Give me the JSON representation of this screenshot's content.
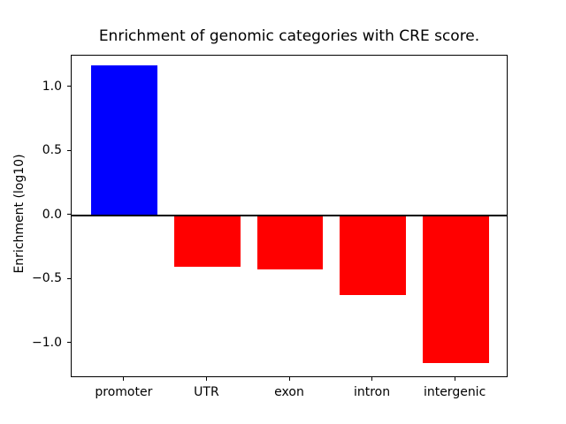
{
  "chart_data": {
    "type": "bar",
    "title": "Enrichment of genomic categories with CRE score.",
    "xlabel": "",
    "ylabel": "Enrichment (log10)",
    "categories": [
      "promoter",
      "UTR",
      "exon",
      "intron",
      "intergenic"
    ],
    "values": [
      1.17,
      -0.4,
      -0.42,
      -0.62,
      -1.15
    ],
    "series": [
      {
        "name": "enrichment",
        "values": [
          1.17,
          -0.4,
          -0.42,
          -0.62,
          -1.15
        ]
      }
    ],
    "bar_colors": [
      "#0000ff",
      "#ff0000",
      "#ff0000",
      "#ff0000",
      "#ff0000"
    ],
    "positive_color": "#0000ff",
    "negative_color": "#ff0000",
    "yticks": [
      1.0,
      0.5,
      0.0,
      -0.5,
      -1.0
    ],
    "ytick_labels": [
      "1.0",
      "0.5",
      "0.0",
      "−0.5",
      "−1.0"
    ],
    "ylim": [
      -1.269,
      1.248
    ],
    "xlim": [
      -0.64,
      4.64
    ],
    "bar_width": 0.8,
    "grid": false,
    "zero_line_y": 0.0,
    "legend_position": "none",
    "axis_color": "#000000",
    "background_color": "#ffffff"
  }
}
